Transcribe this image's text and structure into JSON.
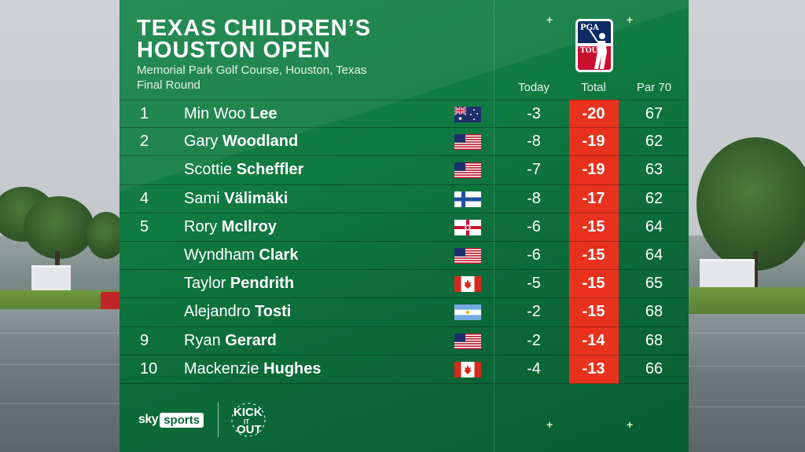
{
  "event": {
    "title": "TEXAS CHILDREN’S HOUSTON OPEN",
    "venue": "Memorial Park Golf Course, Houston, Texas",
    "round": "Final Round"
  },
  "logo": {
    "pga": "PGA",
    "tour": "TOUR"
  },
  "columns": {
    "today": "Today",
    "total": "Total",
    "par": "Par 70"
  },
  "colors": {
    "panel": "#117a42",
    "total_highlight": "#e8321e"
  },
  "leaderboard": [
    {
      "pos": "1",
      "first": "Min Woo",
      "last": "Lee",
      "flag": "australia",
      "today": "-3",
      "total": "-20",
      "par": "67"
    },
    {
      "pos": "2",
      "first": "Gary",
      "last": "Woodland",
      "flag": "usa",
      "today": "-8",
      "total": "-19",
      "par": "62"
    },
    {
      "pos": "",
      "first": "Scottie",
      "last": "Scheffler",
      "flag": "usa",
      "today": "-7",
      "total": "-19",
      "par": "63"
    },
    {
      "pos": "4",
      "first": "Sami",
      "last": "Välimäki",
      "flag": "finland",
      "today": "-8",
      "total": "-17",
      "par": "62"
    },
    {
      "pos": "5",
      "first": "Rory",
      "last": "McIlroy",
      "flag": "northern-ireland",
      "today": "-6",
      "total": "-15",
      "par": "64"
    },
    {
      "pos": "",
      "first": "Wyndham",
      "last": "Clark",
      "flag": "usa",
      "today": "-6",
      "total": "-15",
      "par": "64"
    },
    {
      "pos": "",
      "first": "Taylor",
      "last": "Pendrith",
      "flag": "canada",
      "today": "-5",
      "total": "-15",
      "par": "65"
    },
    {
      "pos": "",
      "first": "Alejandro",
      "last": "Tosti",
      "flag": "argentina",
      "today": "-2",
      "total": "-15",
      "par": "68"
    },
    {
      "pos": "9",
      "first": "Ryan",
      "last": "Gerard",
      "flag": "usa",
      "today": "-2",
      "total": "-14",
      "par": "68"
    },
    {
      "pos": "10",
      "first": "Mackenzie",
      "last": "Hughes",
      "flag": "canada",
      "today": "-4",
      "total": "-13",
      "par": "66"
    }
  ],
  "branding": {
    "sky": "sky",
    "sports": "sports"
  }
}
